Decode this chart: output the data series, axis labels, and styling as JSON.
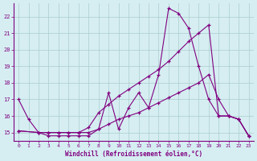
{
  "xlabel": "Windchill (Refroidissement éolien,°C)",
  "background_color": "#d6eef2",
  "grid_color": "#aacccc",
  "line_color": "#800080",
  "xlim": [
    -0.5,
    23.5
  ],
  "ylim": [
    14.5,
    22.8
  ],
  "yticks": [
    15,
    16,
    17,
    18,
    19,
    20,
    21,
    22
  ],
  "xticks": [
    0,
    1,
    2,
    3,
    4,
    5,
    6,
    7,
    8,
    9,
    10,
    11,
    12,
    13,
    14,
    15,
    16,
    17,
    18,
    19,
    20,
    21,
    22,
    23
  ],
  "series1_x": [
    0,
    1,
    2,
    3,
    4,
    5,
    6,
    7,
    8,
    9,
    10,
    11,
    12,
    13,
    14,
    15,
    16,
    17,
    18,
    19,
    20,
    21,
    22,
    23
  ],
  "series1_y": [
    17.0,
    15.8,
    15.0,
    14.8,
    14.8,
    14.8,
    14.8,
    14.8,
    15.2,
    17.4,
    15.2,
    16.5,
    17.4,
    16.5,
    18.5,
    22.5,
    22.2,
    21.3,
    19.0,
    17.0,
    16.0,
    16.0,
    15.8,
    14.8
  ],
  "series2_x": [
    0,
    2,
    3,
    4,
    5,
    6,
    7,
    8,
    9,
    10,
    11,
    12,
    13,
    14,
    15,
    16,
    17,
    18,
    19,
    20,
    21,
    22,
    23
  ],
  "series2_y": [
    15.1,
    15.0,
    15.0,
    15.0,
    15.0,
    15.0,
    15.0,
    15.2,
    15.5,
    15.8,
    16.0,
    16.2,
    16.5,
    16.8,
    17.1,
    17.4,
    17.7,
    18.0,
    18.5,
    17.0,
    16.0,
    15.8,
    14.8
  ],
  "series3_x": [
    0,
    2,
    3,
    4,
    5,
    6,
    7,
    8,
    9,
    10,
    11,
    12,
    13,
    14,
    15,
    16,
    17,
    18,
    19,
    20,
    21,
    22,
    23
  ],
  "series3_y": [
    15.1,
    15.0,
    15.0,
    15.0,
    15.0,
    15.0,
    15.3,
    16.2,
    16.7,
    17.2,
    17.6,
    18.0,
    18.4,
    18.8,
    19.3,
    19.9,
    20.5,
    21.0,
    21.5,
    16.0,
    16.0,
    15.8,
    14.8
  ]
}
